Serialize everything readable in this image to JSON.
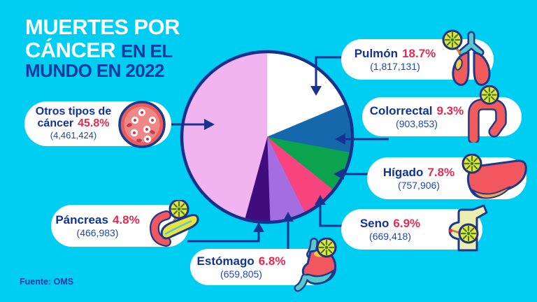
{
  "title": {
    "line1": "MUERTES POR",
    "line2_white": "CÁNCER",
    "line2_blue": "EN EL",
    "line3": "MUNDO EN 2022"
  },
  "source": "Fuente: OMS",
  "colors": {
    "background": "#00cdf2",
    "navy_text": "#10339b",
    "red_accent": "#e8294f",
    "count_blue": "#1a46c2",
    "pill_background": "#ffffff",
    "arrow_navy": "#17328f"
  },
  "chart_data": {
    "type": "pie",
    "title": "Muertes por cáncer en el mundo en 2022",
    "labels": [
      "Pulmón",
      "Colorrectal",
      "Hígado",
      "Seno",
      "Estómago",
      "Páncreas",
      "Otros tipos de cáncer"
    ],
    "ids": [
      "pulmon",
      "colorrectal",
      "higado",
      "seno",
      "estomago",
      "pancreas",
      "otros"
    ],
    "values": [
      18.7,
      9.3,
      7.8,
      6.9,
      6.8,
      4.8,
      45.8
    ],
    "counts": [
      1817131,
      903853,
      757906,
      669418,
      659805,
      466983,
      4461424
    ],
    "slice_colors": [
      "#ffffff",
      "#1668ac",
      "#0ca34e",
      "#f7447f",
      "#a46ee3",
      "#410c7e",
      "#f2b4f0"
    ],
    "start_angle_deg": 0,
    "direction": "clockwise",
    "border_color": "#16308c",
    "legend_position": "callouts"
  },
  "labels": {
    "pulmon": {
      "name": "Pulmón",
      "pct": "18.7%",
      "count": "(1,817,131)",
      "icon": "lungs-icon"
    },
    "colorrectal": {
      "name": "Colorrectal",
      "pct": "9.3%",
      "count": "(903,853)",
      "icon": "colon-icon"
    },
    "higado": {
      "name": "Hígado",
      "pct": "7.8%",
      "count": "(757,906)",
      "icon": "liver-icon"
    },
    "seno": {
      "name": "Seno",
      "pct": "6.9%",
      "count": "(669,418)",
      "icon": "breast-icon"
    },
    "estomago": {
      "name": "Estómago",
      "pct": "6.8%",
      "count": "(659,805)",
      "icon": "stomach-icon"
    },
    "pancreas": {
      "name": "Páncreas",
      "pct": "4.8%",
      "count": "(466,983)",
      "icon": "pancreas-icon"
    },
    "otros": {
      "name_line1": "Otros tipos de",
      "name_line2": "cáncer",
      "pct": "45.8%",
      "count": "(4,461,424)",
      "icon": "cancer-cells-icon"
    }
  }
}
